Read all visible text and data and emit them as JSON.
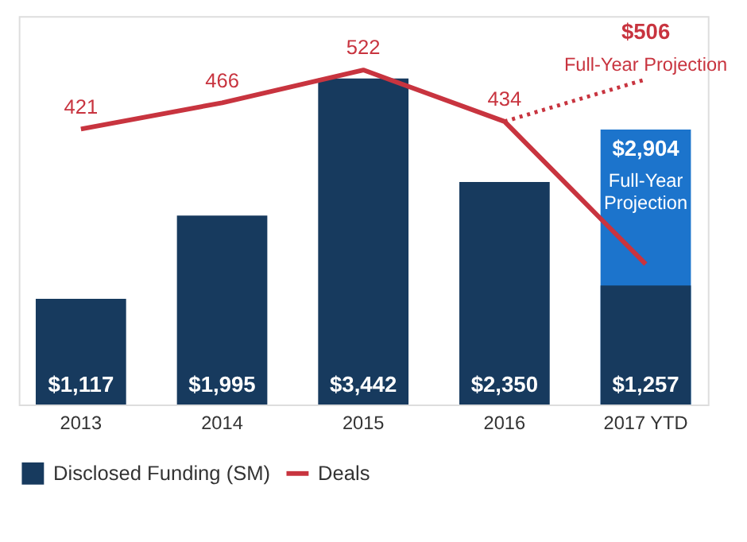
{
  "chart_data": {
    "type": "bar",
    "stacked": false,
    "categories": [
      "2013",
      "2014",
      "2015",
      "2016",
      "2017 YTD"
    ],
    "ylim": [
      0,
      4100
    ],
    "y2lim": [
      -50,
      614
    ],
    "tick_labels": "x",
    "legend": "bottom",
    "series": [
      {
        "name": "Disclosed Funding (SM)",
        "color": "#173a5e",
        "values": [
          1117,
          1995,
          3442,
          2350,
          1257
        ],
        "value_labels": [
          "$1,117",
          "$1,995",
          "$3,442",
          "$2,350",
          "$1,257"
        ]
      },
      {
        "color": "#1c74cc",
        "values": [
          null,
          null,
          null,
          null,
          2904
        ],
        "value_labels": [
          null,
          null,
          null,
          null,
          "$2,904"
        ]
      },
      {
        "name": "Deals",
        "type": "line",
        "axis": "y2",
        "color": "#c8343f",
        "values": [
          421,
          466,
          522,
          434,
          190
        ],
        "value_labels": [
          "421",
          "466",
          "522",
          "434",
          null
        ]
      },
      {
        "type": "line",
        "axis": "y2",
        "line_style": "dotted",
        "color": "#c8343f",
        "values": [
          null,
          null,
          null,
          434,
          506
        ],
        "value_labels": [
          null,
          null,
          null,
          null,
          "$506"
        ]
      }
    ],
    "annotations": [
      "Full-Year Projection",
      "Full-Year Projection"
    ]
  }
}
